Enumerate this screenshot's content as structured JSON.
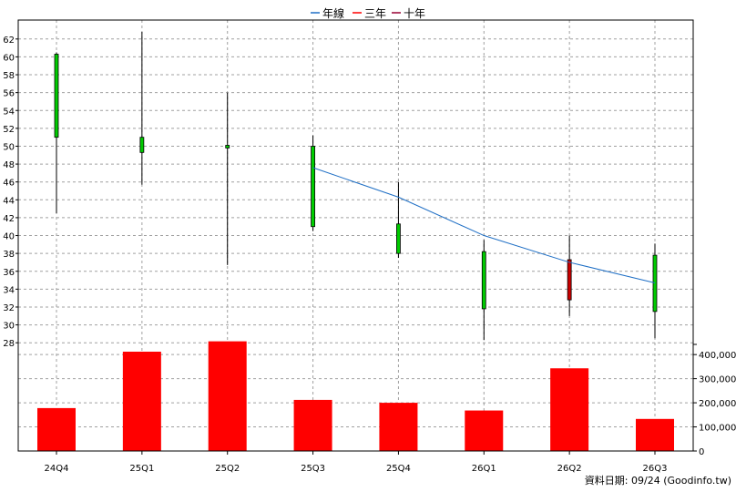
{
  "chart_data": {
    "type": "candlestick+line+bar",
    "categories": [
      "24Q4",
      "25Q1",
      "25Q2",
      "25Q3",
      "25Q4",
      "26Q1",
      "26Q2",
      "26Q3"
    ],
    "legend": {
      "placement": "top-center",
      "items": [
        {
          "label": "年線",
          "color": "#1f6fc5"
        },
        {
          "label": "三年",
          "color": "#ff0000"
        },
        {
          "label": "十年",
          "color": "#990033"
        }
      ]
    },
    "price_axis": {
      "ylim": [
        27,
        63
      ],
      "ticks": [
        28,
        30,
        32,
        34,
        36,
        38,
        40,
        42,
        44,
        46,
        48,
        50,
        52,
        54,
        56,
        58,
        60,
        62
      ]
    },
    "candles": [
      {
        "open": 51.0,
        "high": 60.5,
        "low": 42.5,
        "close": 60.3,
        "color": "#00cc00"
      },
      {
        "open": 49.3,
        "high": 62.8,
        "low": 45.7,
        "close": 51.0,
        "color": "#00cc00"
      },
      {
        "open": 49.8,
        "high": 56.0,
        "low": 36.7,
        "close": 50.1,
        "color": "#00cc00"
      },
      {
        "open": 41.0,
        "high": 51.2,
        "low": 40.5,
        "close": 50.0,
        "color": "#00cc00"
      },
      {
        "open": 38.0,
        "high": 46.0,
        "low": 37.5,
        "close": 41.3,
        "color": "#00cc00"
      },
      {
        "open": 31.8,
        "high": 39.5,
        "low": 28.3,
        "close": 38.2,
        "color": "#00cc00"
      },
      {
        "open": 37.3,
        "high": 40.0,
        "low": 31.0,
        "close": 32.8,
        "color": "#cc0000"
      },
      {
        "open": 31.5,
        "high": 39.1,
        "low": 28.5,
        "close": 37.8,
        "color": "#00cc00"
      }
    ],
    "annual_line": {
      "name": "年線",
      "start_index": 3,
      "values": [
        47.6,
        44.3,
        40.0,
        37.0,
        34.7
      ]
    },
    "volume_axis": {
      "ylim": [
        0,
        480000
      ],
      "ticks": [
        0,
        100000,
        200000,
        300000,
        400000
      ],
      "tick_labels": [
        "0",
        "100,000",
        "200,000",
        "300,000",
        "400,000"
      ]
    },
    "volume": {
      "values": [
        178000,
        412000,
        455000,
        212000,
        200000,
        168000,
        343000,
        133000
      ],
      "color": "#ff0000"
    },
    "grid": true
  },
  "footer": {
    "date_text": "資料日期: 09/24  (Goodinfo.tw)"
  }
}
